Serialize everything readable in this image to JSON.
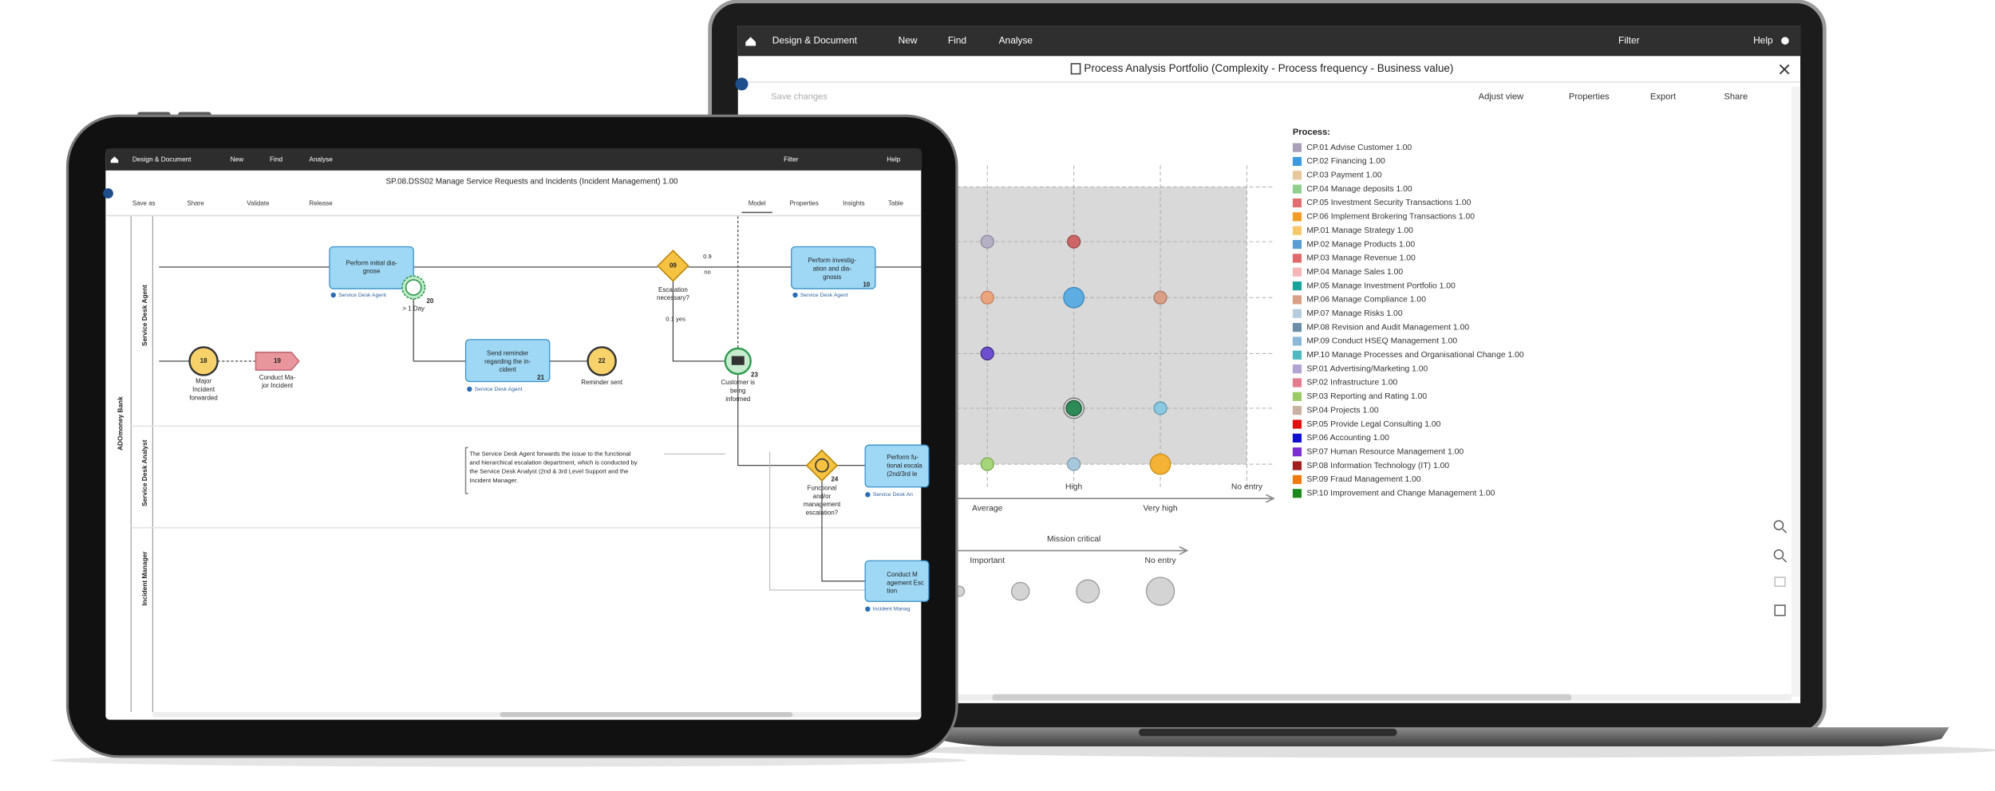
{
  "laptop": {
    "toolbar": {
      "left": [
        "Design & Document",
        "New",
        "Find",
        "Analyse"
      ],
      "right": [
        "Filter",
        "Help"
      ]
    },
    "title": "Process Analysis Portfolio (Complexity - Process frequency - Business value)",
    "save": "Save changes",
    "actions": [
      "Adjust view",
      "Properties",
      "Export",
      "Share"
    ],
    "chart": {
      "x_labels": [
        "Average",
        "High",
        "Very high",
        "No entry"
      ],
      "size_title": "Mission critical",
      "size_labels": [
        "Important",
        "No entry"
      ]
    },
    "legend": {
      "title": "Process:",
      "items": [
        {
          "label": "CP.01 Advise Customer 1.00",
          "color": "#a9a0b8"
        },
        {
          "label": "CP.02 Financing 1.00",
          "color": "#3b9ae0"
        },
        {
          "label": "CP.03 Payment 1.00",
          "color": "#e8c79a"
        },
        {
          "label": "CP.04 Manage deposits 1.00",
          "color": "#8fd08f"
        },
        {
          "label": "CP.05 Investment Security Transactions 1.00",
          "color": "#e07070"
        },
        {
          "label": "CP.06 Implement Brokering Transactions 1.00",
          "color": "#f39c2a"
        },
        {
          "label": "MP.01 Manage Strategy 1.00",
          "color": "#f7c86a"
        },
        {
          "label": "MP.02 Manage Products 1.00",
          "color": "#5b9bd5"
        },
        {
          "label": "MP.03 Manage Revenue 1.00",
          "color": "#e06a6a"
        },
        {
          "label": "MP.04 Manage Sales 1.00",
          "color": "#f7b6b6"
        },
        {
          "label": "MP.05 Manage Investment Portfolio 1.00",
          "color": "#1aa39a"
        },
        {
          "label": "MP.06 Manage Compliance 1.00",
          "color": "#d99f86"
        },
        {
          "label": "MP.07 Manage Risks 1.00",
          "color": "#b6cde0"
        },
        {
          "label": "MP.08 Revision and Audit Management 1.00",
          "color": "#6b8fa8"
        },
        {
          "label": "MP.09 Conduct HSEQ Management 1.00",
          "color": "#8cb8d8"
        },
        {
          "label": "MP.10 Manage Processes and Organisational Change 1.00",
          "color": "#4fb8c0"
        },
        {
          "label": "SP.01 Advertising/Marketing 1.00",
          "color": "#b3a3d3"
        },
        {
          "label": "SP.02 Infrastructure 1.00",
          "color": "#e37b8c"
        },
        {
          "label": "SP.03 Reporting and Rating 1.00",
          "color": "#9ccc65"
        },
        {
          "label": "SP.04 Projects 1.00",
          "color": "#c9b0a0"
        },
        {
          "label": "SP.05 Provide Legal Consulting 1.00",
          "color": "#e01010"
        },
        {
          "label": "SP.06 Accounting 1.00",
          "color": "#1010d0"
        },
        {
          "label": "SP.07 Human Resource Management 1.00",
          "color": "#7b2fd0"
        },
        {
          "label": "SP.08 Information Technology (IT) 1.00",
          "color": "#a02020"
        },
        {
          "label": "SP.09 Fraud Management 1.00",
          "color": "#f07a10"
        },
        {
          "label": "SP.10 Improvement and Change Management 1.00",
          "color": "#1a8a1a"
        }
      ]
    }
  },
  "tablet": {
    "toolbar": {
      "left": [
        "Design & Document",
        "New",
        "Find",
        "Analyse"
      ],
      "right": [
        "Filter",
        "Help"
      ]
    },
    "title": "SP.08.DSS02 Manage Service Requests and Incidents (Incident Management) 1.00",
    "actions": [
      "Save as",
      "Share",
      "Validate",
      "Release"
    ],
    "tabs": [
      "Model",
      "Properties",
      "Insights",
      "Table"
    ],
    "pool": "ADOmoney Bank",
    "lanes": [
      "Service Desk Agent",
      "Service Desk Analyst",
      "Incident Manager"
    ],
    "flows": [
      "0.9",
      "no",
      "0.1 yes"
    ],
    "annotation": [
      "The Service Desk Agent forwards the issue to the functional",
      "and hierarchical escalation department, which is conducted by",
      "the Service Desk Analyst (2nd & 3rd Level Support and the",
      "Incident Manager."
    ],
    "nodes": [
      {
        "label": [
          "Perform initial dia-",
          "gnose"
        ],
        "role": "Service Desk Agent"
      },
      {
        "number": "20",
        "label": [
          "> 1 Day"
        ]
      },
      {
        "number": "09",
        "label": [
          "Escalation",
          "necessary?"
        ]
      },
      {
        "number": "10",
        "label": [
          "Perform investig-",
          "ation and dia-",
          "gnosis"
        ],
        "role": "Service Desk Agent"
      },
      {
        "number": "18",
        "label": [
          "Major",
          "Incident",
          "forwarded"
        ]
      },
      {
        "number": "19",
        "label": [
          "Conduct Ma-",
          "jor Incident"
        ]
      },
      {
        "number": "21",
        "label": [
          "Send reminder",
          "regarding the in-",
          "cident"
        ],
        "role": "Service Desk Agent"
      },
      {
        "number": "22",
        "label": [
          "Reminder sent"
        ]
      },
      {
        "number": "23",
        "label": [
          "Customer is",
          "being",
          "informed"
        ]
      },
      {
        "number": "24",
        "label": [
          "Functional",
          "and/or",
          "management",
          "escalation?"
        ]
      },
      {
        "label": [
          "Perform fu-",
          "tional escala",
          "(2nd/3rd le"
        ],
        "role": "Service Desk An"
      },
      {
        "label": [
          "Conduct M",
          "agement Esc",
          "tion"
        ],
        "role": "Incident Manag"
      }
    ]
  }
}
